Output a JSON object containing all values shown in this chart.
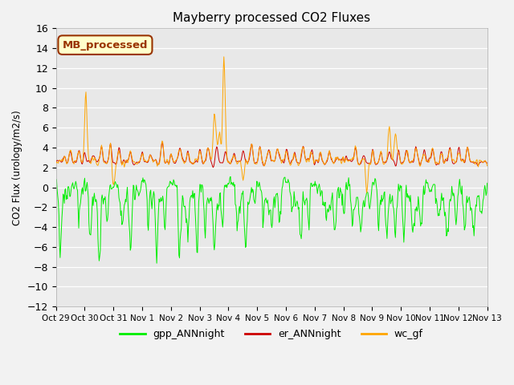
{
  "title": "Mayberry processed CO2 Fluxes",
  "ylabel": "CO2 Flux (urology/m2/s)",
  "ylim": [
    -12,
    16
  ],
  "yticks": [
    -12,
    -10,
    -8,
    -6,
    -4,
    -2,
    0,
    2,
    4,
    6,
    8,
    10,
    12,
    14,
    16
  ],
  "xtick_labels": [
    "Oct 29",
    "Oct 30",
    "Oct 31",
    "Nov 1",
    "Nov 2",
    "Nov 3",
    "Nov 4",
    "Nov 5",
    "Nov 6",
    "Nov 7",
    "Nov 8",
    "Nov 9",
    "Nov 10",
    "Nov 11",
    "Nov 12",
    "Nov 13"
  ],
  "n_days": 15.0,
  "n_points": 720,
  "gpp_color": "#00ee00",
  "er_color": "#cc0000",
  "wc_color": "#ffa500",
  "plot_bg_color": "#e8e8e8",
  "fig_bg_color": "#f2f2f2",
  "grid_color": "#ffffff",
  "legend_label": "MB_processed",
  "legend_bg": "#ffffcc",
  "legend_border": "#993300",
  "series_legend": [
    {
      "label": "gpp_ANNnight",
      "color": "#00ee00"
    },
    {
      "label": "er_ANNnight",
      "color": "#cc0000"
    },
    {
      "label": "wc_gf",
      "color": "#ffa500"
    }
  ],
  "seed": 42
}
